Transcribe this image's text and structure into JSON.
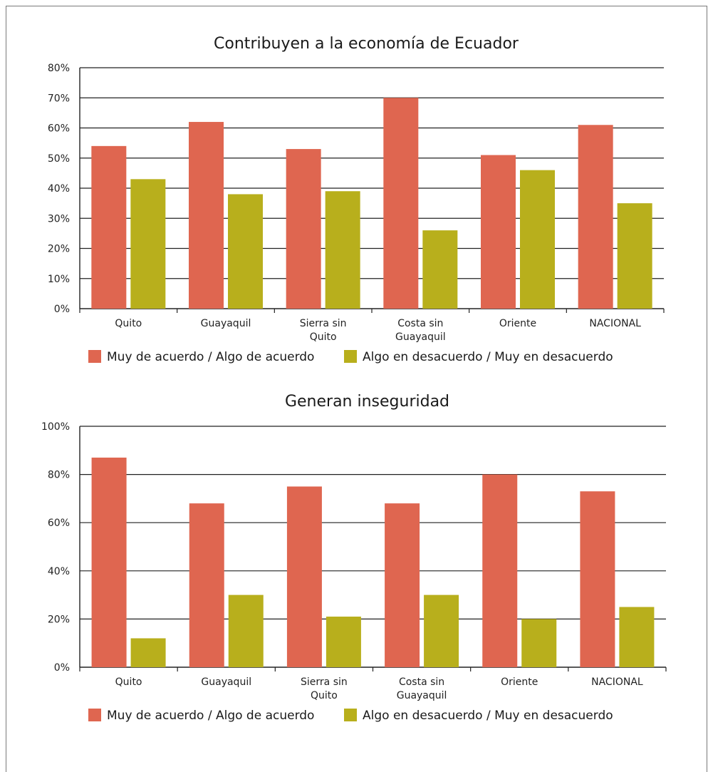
{
  "colors": {
    "agree": "#df6650",
    "disagree": "#b8af1c",
    "grid": "#222222"
  },
  "chart_data": [
    {
      "type": "bar",
      "title": "Contribuyen a la economía de Ecuador",
      "categories": [
        [
          "Quito"
        ],
        [
          "Guayaquil"
        ],
        [
          "Sierra sin",
          "Quito"
        ],
        [
          "Costa sin",
          "Guayaquil"
        ],
        [
          "Oriente"
        ],
        [
          "NACIONAL"
        ]
      ],
      "series": [
        {
          "name": "Muy de acuerdo / Algo de acuerdo",
          "values": [
            54,
            62,
            53,
            70,
            51,
            61
          ]
        },
        {
          "name": "Algo en desacuerdo / Muy en desacuerdo",
          "values": [
            43,
            38,
            39,
            26,
            46,
            35
          ]
        }
      ],
      "ylim": [
        0,
        80
      ],
      "yticks": [
        "0%",
        "10%",
        "20%",
        "30%",
        "40%",
        "50%",
        "60%",
        "70%",
        "80%"
      ],
      "grid": true,
      "legend": "bottom"
    },
    {
      "type": "bar",
      "title": "Generan inseguridad",
      "categories": [
        [
          "Quito"
        ],
        [
          "Guayaquil"
        ],
        [
          "Sierra sin",
          "Quito"
        ],
        [
          "Costa sin",
          "Guayaquil"
        ],
        [
          "Oriente"
        ],
        [
          "NACIONAL"
        ]
      ],
      "series": [
        {
          "name": "Muy de acuerdo / Algo de acuerdo",
          "values": [
            87,
            68,
            75,
            68,
            80,
            73
          ]
        },
        {
          "name": "Algo en desacuerdo / Muy en desacuerdo",
          "values": [
            12,
            30,
            21,
            30,
            20,
            25
          ]
        }
      ],
      "ylim": [
        0,
        100
      ],
      "yticks": [
        "0%",
        "20%",
        "40%",
        "60%",
        "80%",
        "100%"
      ],
      "grid": true,
      "legend": "bottom"
    }
  ]
}
